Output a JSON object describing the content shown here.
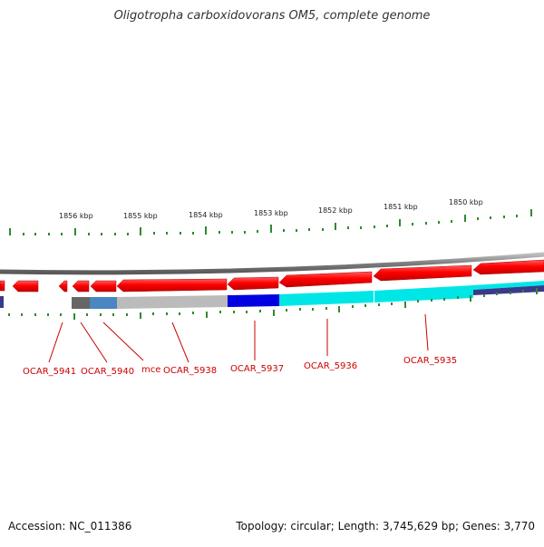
{
  "title": "Oligotropha carboxidovorans OM5, complete genome",
  "accession": "Accession: NC_011386",
  "summary": "Topology: circular; Length: 3,745,629 bp; Genes: 3,770",
  "colors": {
    "forward_gene": "#ff0000",
    "backbone": "#888888",
    "tick": "#2f8a2f",
    "label": "#cc0000",
    "blue": "#0000e0",
    "cyan": "#00e6e6",
    "light_gray": "#bbbbbb",
    "steel_blue": "#4a86c0",
    "dark_gray": "#666666",
    "navy": "#3a3a8a"
  },
  "ruler_labels": [
    {
      "id": "kbp-1856",
      "text": "1856 kbp"
    },
    {
      "id": "kbp-1855",
      "text": "1855 kbp"
    },
    {
      "id": "kbp-1854",
      "text": "1854 kbp"
    },
    {
      "id": "kbp-1853",
      "text": "1853 kbp"
    },
    {
      "id": "kbp-1852",
      "text": "1852 kbp"
    },
    {
      "id": "kbp-1851",
      "text": "1851 kbp"
    },
    {
      "id": "kbp-1850",
      "text": "1850 kbp"
    }
  ],
  "gene_labels": [
    {
      "id": "ocar5941",
      "text": "OCAR_5941"
    },
    {
      "id": "ocar5940",
      "text": "OCAR_5940"
    },
    {
      "id": "mce",
      "text": "mce"
    },
    {
      "id": "ocar5938",
      "text": "OCAR_5938"
    },
    {
      "id": "ocar5937",
      "text": "OCAR_5937"
    },
    {
      "id": "ocar5936",
      "text": "OCAR_5936"
    },
    {
      "id": "ocar5935",
      "text": "OCAR_5935"
    }
  ]
}
